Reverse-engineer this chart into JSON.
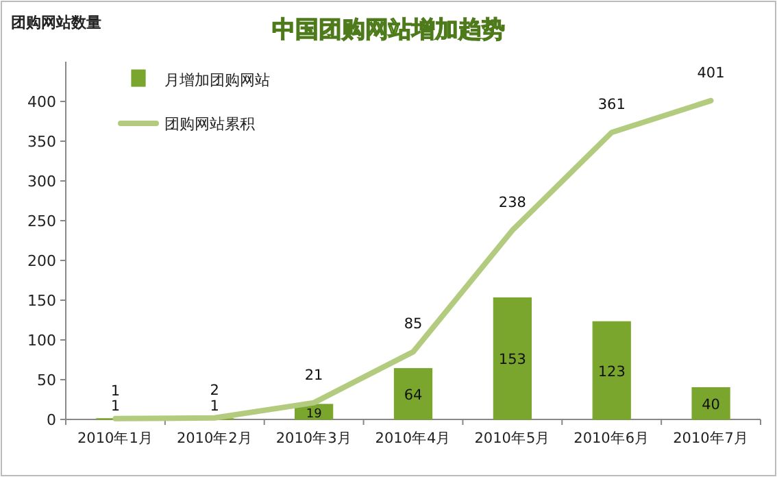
{
  "chart_data": {
    "type": "bar",
    "title": "中国团购网站增加趋势",
    "ylabel": "团购网站数量",
    "categories": [
      "2010年1月",
      "2010年2月",
      "2010年3月",
      "2010年4月",
      "2010年5月",
      "2010年6月",
      "2010年7月"
    ],
    "series": [
      {
        "name": "月增加团购网站",
        "color": "#7aa62e",
        "values": [
          1,
          1,
          19,
          64,
          153,
          123,
          40
        ]
      },
      {
        "name": "团购网站累积",
        "type": "line",
        "color": "#b3cb7e",
        "values": [
          1,
          2,
          21,
          85,
          238,
          361,
          401
        ]
      }
    ],
    "ylim": [
      0,
      450
    ],
    "yticks": [
      0,
      50,
      100,
      150,
      200,
      250,
      300,
      350,
      400
    ],
    "data_labels": true,
    "legend": "top left",
    "grid": false,
    "marker": "none",
    "line_style": "solid"
  }
}
